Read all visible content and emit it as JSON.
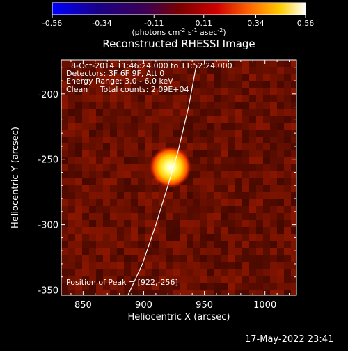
{
  "colorbar": {
    "ticks": [
      "-0.56",
      "-0.34",
      "-0.11",
      "0.11",
      "0.34",
      "0.56"
    ],
    "tick_values": [
      -0.56,
      -0.34,
      -0.11,
      0.11,
      0.34,
      0.56
    ],
    "range": [
      -0.56,
      0.56
    ],
    "units_prefix": "(photons cm",
    "units_exp1": "-2",
    "units_mid": " s",
    "units_exp2": "-1",
    "units_mid2": " asec",
    "units_exp3": "-2",
    "units_suffix": ")",
    "colormap": "idl-color-table-5 (blue-black-red-yellow-white)"
  },
  "plot": {
    "title": "Reconstructed RHESSI Image",
    "xlabel": "Heliocentric X (arcsec)",
    "ylabel": "Heliocentric Y (arcsec)",
    "annotations": {
      "time_range": "8-Oct-2014 11:46:24.000 to 11:52:24.000",
      "detectors": "Detectors: 3F 6F 9F, Att 0",
      "energy": "Energy Range: 3.0 - 6.0 keV",
      "clean": "Clean     Total counts: 2.09E+04",
      "peak": "Position of Peak = [922,-256]"
    }
  },
  "footer": {
    "timestamp": "17-May-2022 23:41"
  },
  "chart_data": {
    "type": "heatmap",
    "title": "Reconstructed RHESSI Image",
    "xlabel": "Heliocentric X (arcsec)",
    "ylabel": "Heliocentric Y (arcsec)",
    "xlim": [
      832,
      1026
    ],
    "ylim": [
      -354,
      -174
    ],
    "xticks": [
      850,
      900,
      950,
      1000
    ],
    "yticks": [
      -200,
      -250,
      -300,
      -350
    ],
    "xtick_labels": [
      "850",
      "900",
      "950",
      "1000"
    ],
    "ytick_labels": [
      "-200",
      "-250",
      "-300",
      "-350"
    ],
    "value_range": [
      -0.56,
      0.56
    ],
    "peak": {
      "x": 922,
      "y": -256,
      "value": 0.56
    },
    "limb_curve": [
      [
        887,
        -354
      ],
      [
        899,
        -330
      ],
      [
        910,
        -300
      ],
      [
        920,
        -270
      ],
      [
        928,
        -245
      ],
      [
        937,
        -210
      ],
      [
        943,
        -180
      ]
    ]
  }
}
